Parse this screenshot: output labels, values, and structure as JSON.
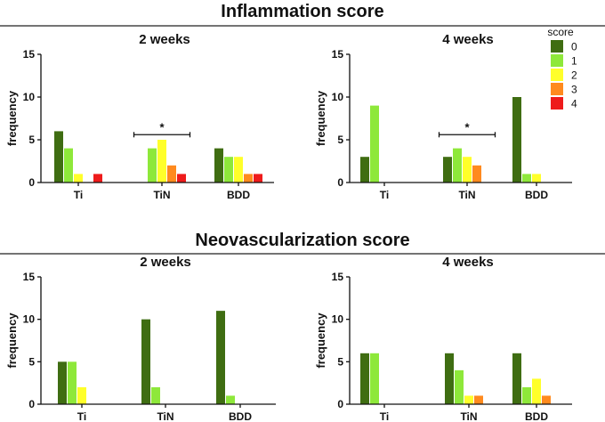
{
  "sections": [
    {
      "title": "Inflammation score"
    },
    {
      "title": "Neovascularization score"
    }
  ],
  "legend": {
    "title": "score",
    "entries": [
      "0",
      "1",
      "2",
      "3",
      "4"
    ]
  },
  "colors": [
    "#3f6d12",
    "#8ee83a",
    "#ffff2a",
    "#ff8a1e",
    "#ee1b1b"
  ],
  "chart_data": [
    {
      "type": "bar",
      "section": "Inflammation score",
      "title": "2 weeks",
      "xlabel": "",
      "ylabel": "frequency",
      "ylim": [
        0,
        15
      ],
      "yticks": [
        "0",
        "5",
        "10",
        "15"
      ],
      "categories": [
        "Ti",
        "TiN",
        "BDD"
      ],
      "series": [
        {
          "name": "0",
          "values": [
            6,
            0,
            4
          ]
        },
        {
          "name": "1",
          "values": [
            4,
            4,
            3
          ]
        },
        {
          "name": "2",
          "values": [
            1,
            5,
            3
          ]
        },
        {
          "name": "3",
          "values": [
            0,
            2,
            1
          ]
        },
        {
          "name": "4",
          "values": [
            1,
            1,
            1
          ]
        }
      ],
      "significance": {
        "label": "*",
        "category": "TiN"
      }
    },
    {
      "type": "bar",
      "section": "Inflammation score",
      "title": "4 weeks",
      "xlabel": "",
      "ylabel": "frequency",
      "ylim": [
        0,
        15
      ],
      "yticks": [
        "0",
        "5",
        "10",
        "15"
      ],
      "categories": [
        "Ti",
        "TiN",
        "BDD"
      ],
      "series": [
        {
          "name": "0",
          "values": [
            3,
            3,
            10
          ]
        },
        {
          "name": "1",
          "values": [
            9,
            4,
            1
          ]
        },
        {
          "name": "2",
          "values": [
            0,
            3,
            1
          ]
        },
        {
          "name": "3",
          "values": [
            0,
            2,
            0
          ]
        },
        {
          "name": "4",
          "values": [
            0,
            0,
            0
          ]
        }
      ],
      "significance": {
        "label": "*",
        "category": "TiN"
      }
    },
    {
      "type": "bar",
      "section": "Neovascularization score",
      "title": "2 weeks",
      "xlabel": "",
      "ylabel": "frequency",
      "ylim": [
        0,
        15
      ],
      "yticks": [
        "0",
        "5",
        "10",
        "15"
      ],
      "categories": [
        "Ti",
        "TiN",
        "BDD"
      ],
      "series": [
        {
          "name": "0",
          "values": [
            5,
            10,
            11
          ]
        },
        {
          "name": "1",
          "values": [
            5,
            2,
            1
          ]
        },
        {
          "name": "2",
          "values": [
            2,
            0,
            0
          ]
        },
        {
          "name": "3",
          "values": [
            0,
            0,
            0
          ]
        },
        {
          "name": "4",
          "values": [
            0,
            0,
            0
          ]
        }
      ]
    },
    {
      "type": "bar",
      "section": "Neovascularization score",
      "title": "4 weeks",
      "xlabel": "",
      "ylabel": "frequency",
      "ylim": [
        0,
        15
      ],
      "yticks": [
        "0",
        "5",
        "10",
        "15"
      ],
      "categories": [
        "Ti",
        "TiN",
        "BDD"
      ],
      "series": [
        {
          "name": "0",
          "values": [
            6,
            6,
            6
          ]
        },
        {
          "name": "1",
          "values": [
            6,
            4,
            2
          ]
        },
        {
          "name": "2",
          "values": [
            0,
            1,
            3
          ]
        },
        {
          "name": "3",
          "values": [
            0,
            1,
            1
          ]
        },
        {
          "name": "4",
          "values": [
            0,
            0,
            0
          ]
        }
      ]
    }
  ]
}
